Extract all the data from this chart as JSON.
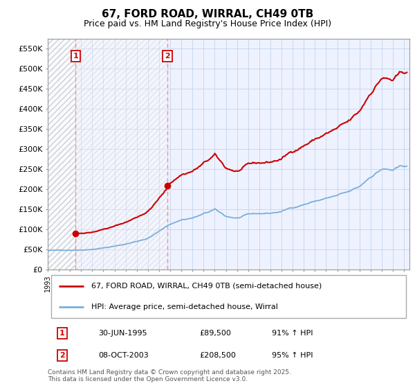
{
  "title": "67, FORD ROAD, WIRRAL, CH49 0TB",
  "subtitle": "Price paid vs. HM Land Registry's House Price Index (HPI)",
  "ylim": [
    0,
    575000
  ],
  "yticks": [
    0,
    50000,
    100000,
    150000,
    200000,
    250000,
    300000,
    350000,
    400000,
    450000,
    500000,
    550000
  ],
  "ytick_labels": [
    "£0",
    "£50K",
    "£100K",
    "£150K",
    "£200K",
    "£250K",
    "£300K",
    "£350K",
    "£400K",
    "£450K",
    "£500K",
    "£550K"
  ],
  "xlim_start": 1993.0,
  "xlim_end": 2025.5,
  "transaction1_x": 1995.5,
  "transaction1_y": 89500,
  "transaction1_label": "1",
  "transaction2_x": 2003.75,
  "transaction2_y": 208500,
  "transaction2_label": "2",
  "red_line_color": "#cc0000",
  "blue_line_color": "#7aaedc",
  "marker_color": "#cc0000",
  "vline_color": "#ff8888",
  "legend_line1": "67, FORD ROAD, WIRRAL, CH49 0TB (semi-detached house)",
  "legend_line2": "HPI: Average price, semi-detached house, Wirral",
  "annotation1_date": "30-JUN-1995",
  "annotation1_price": "£89,500",
  "annotation1_hpi": "91% ↑ HPI",
  "annotation2_date": "08-OCT-2003",
  "annotation2_price": "£208,500",
  "annotation2_hpi": "95% ↑ HPI",
  "footer": "Contains HM Land Registry data © Crown copyright and database right 2025.\nThis data is licensed under the Open Government Licence v3.0.",
  "plot_bg_color": "#eef2ff",
  "grid_color": "#c8d8ee",
  "hatch_color": "#bbbbbb",
  "title_fontsize": 11,
  "subtitle_fontsize": 9
}
